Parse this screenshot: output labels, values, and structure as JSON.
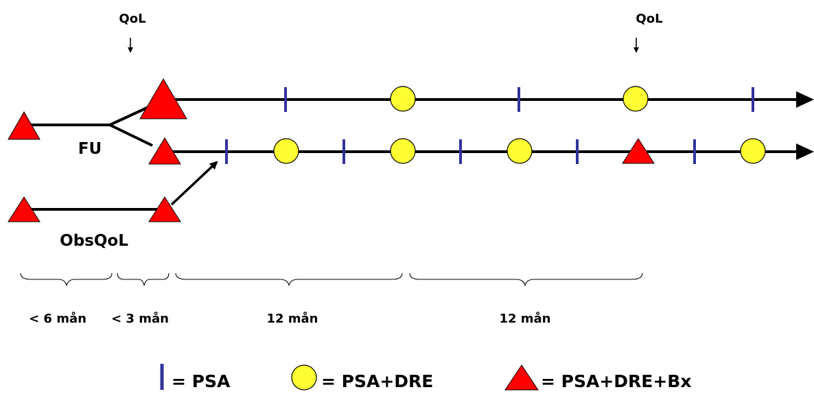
{
  "labels": {
    "qol_left": "QoL",
    "qol_right": "QoL",
    "fu": "FU",
    "obsqol": "ObsQoL"
  },
  "durations": [
    "< 6 mån",
    "< 3 mån",
    "12 mån",
    "12 mån"
  ],
  "legend": {
    "psa": "= PSA",
    "psa_dre": "= PSA+DRE",
    "psa_dre_bx": "= PSA+DRE+Bx"
  },
  "colors": {
    "line": "#000000",
    "psa_tick": "#33339a",
    "circle_fill": "#ffff33",
    "triangle_fill": "#ff0000"
  },
  "symbols": {
    "psa": "blue-vertical-tick",
    "psa_dre": "yellow-circle",
    "psa_dre_bx": "red-triangle"
  }
}
